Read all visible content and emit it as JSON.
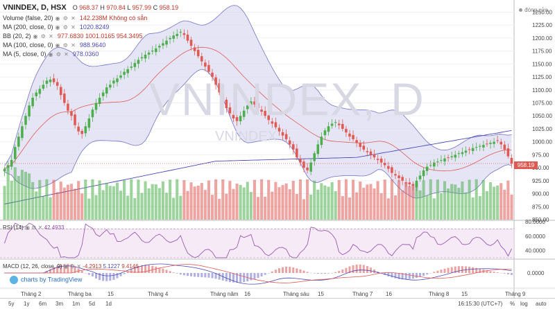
{
  "header": {
    "symbol": "VNINDEX, D, HSX",
    "ohlc_o": "O",
    "ohlc_o_val": "968.37",
    "ohlc_h": "H",
    "ohlc_h_val": "970.84",
    "ohlc_l": "L",
    "ohlc_l_val": "957.99",
    "ohlc_c": "C",
    "ohlc_c_val": "958.19"
  },
  "legends": [
    {
      "label": "Volume (false, 20)",
      "value": "142.238M  Không có sẵn",
      "color": "#c0392b"
    },
    {
      "label": "MA (200, close, 0)",
      "value": "1020.8249",
      "color": "#4a4ab8"
    },
    {
      "label": "BB (20, 2)",
      "value": "977.6830  1001.0165  954.3495",
      "color": "#c0392b"
    },
    {
      "label": "MA (100, close, 0)",
      "value": "988.9640",
      "color": "#4a4ab8"
    },
    {
      "label": "MA (5, close, 0)",
      "value": "978.0360",
      "color": "#4a4ab8"
    }
  ],
  "watermark": "VNINDEX, D",
  "watermark_sub": "VNINDEX",
  "top_right_label": "đóng cửa",
  "price_axis": [
    "1250.00",
    "1225.00",
    "1200.00",
    "1175.00",
    "1150.00",
    "1125.00",
    "1100.00",
    "1075.00",
    "1050.00",
    "1025.00",
    "1000.00",
    "975.00",
    "950.00",
    "925.00",
    "900.00",
    "875.00",
    "850.00"
  ],
  "current_price": "958.19",
  "rsi": {
    "label": "RSI (14)",
    "value": "42.4933",
    "axis": [
      "80.0000",
      "60.0000",
      "40.0000"
    ]
  },
  "macd": {
    "label": "MACD (12, 26, close, 9)",
    "v1": "-4.2913",
    "v2": "5.1227",
    "v3": "9.4146",
    "axis": [
      "0.0000"
    ]
  },
  "time_labels": [
    "Tháng 2",
    "Tháng ba",
    "15",
    "Tháng 4",
    "Tháng năm",
    "16",
    "Tháng sáu",
    "15",
    "Tháng 7",
    "16",
    "Tháng 8",
    "15",
    "Tháng 9"
  ],
  "timeframes": [
    "5y",
    "1y",
    "6m",
    "3m",
    "1m",
    "5d",
    "1d"
  ],
  "bottom_right": {
    "time": "16:15:30 (UTC+7)",
    "pct": "%",
    "log": "log",
    "auto": "auto"
  },
  "branding": "charts by TradingView",
  "colors": {
    "up": "#4cae4c",
    "down": "#e05a54",
    "bb_fill": "#dcdcf2",
    "ma200": "#4a4ab8"
  },
  "chart_data": {
    "type": "candlestick",
    "ylim": [
      850,
      1260
    ],
    "closes": [
      948,
      955,
      965,
      990,
      1010,
      1030,
      1050,
      1070,
      1085,
      1095,
      1102,
      1110,
      1118,
      1120,
      1115,
      1108,
      1090,
      1075,
      1060,
      1050,
      1032,
      1020,
      1015,
      1030,
      1045,
      1062,
      1075,
      1085,
      1095,
      1105,
      1110,
      1118,
      1122,
      1128,
      1135,
      1140,
      1145,
      1152,
      1158,
      1163,
      1168,
      1172,
      1176,
      1180,
      1185,
      1190,
      1195,
      1200,
      1205,
      1208,
      1212,
      1206,
      1195,
      1185,
      1175,
      1165,
      1155,
      1145,
      1135,
      1125,
      1110,
      1095,
      1080,
      1065,
      1055,
      1045,
      1040,
      1050,
      1060,
      1070,
      1078,
      1072,
      1065,
      1058,
      1050,
      1042,
      1035,
      1028,
      1020,
      1012,
      1005,
      995,
      985,
      970,
      960,
      950,
      945,
      960,
      978,
      995,
      1010,
      1022,
      1030,
      1035,
      1038,
      1032,
      1025,
      1018,
      1010,
      1005,
      998,
      990,
      985,
      980,
      975,
      970,
      965,
      960,
      955,
      948,
      940,
      935,
      930,
      925,
      920,
      918,
      915,
      925,
      935,
      945,
      952,
      955,
      960,
      962,
      965,
      968,
      970,
      972,
      975,
      978,
      980,
      983,
      985,
      988,
      990,
      992,
      994,
      996,
      998,
      1000,
      1002,
      995,
      985,
      972,
      958
    ],
    "rsi_last": 42.4933,
    "macd_last": [
      -4.2913,
      5.1227,
      9.4146
    ]
  }
}
